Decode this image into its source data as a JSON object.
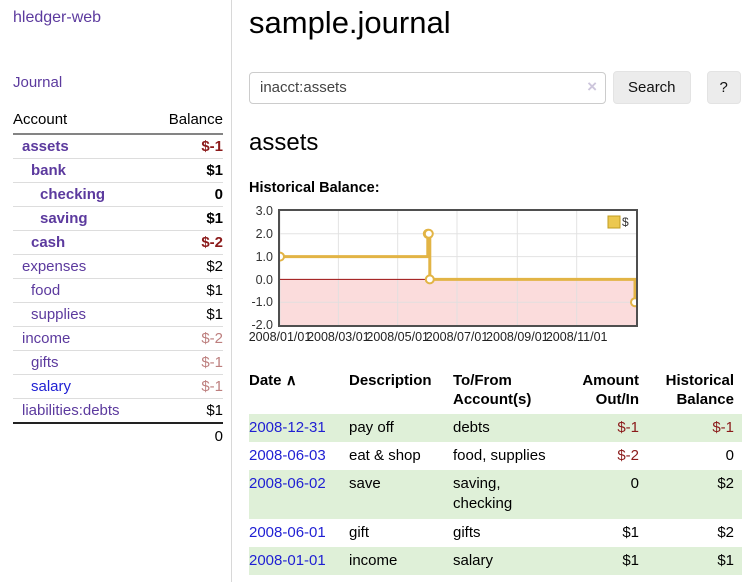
{
  "sidebar": {
    "app_title": "hledger-web",
    "journal_label": "Journal",
    "accounts_table": {
      "headers": {
        "account": "Account",
        "balance": "Balance"
      },
      "rows": [
        {
          "name": "assets",
          "balance": "$-1",
          "depth": 0,
          "bold": true,
          "negative": true
        },
        {
          "name": "bank",
          "balance": "$1",
          "depth": 1,
          "bold": true,
          "negative": false
        },
        {
          "name": "checking",
          "balance": "0",
          "depth": 2,
          "bold": true,
          "negative": false
        },
        {
          "name": "saving",
          "balance": "$1",
          "depth": 2,
          "bold": true,
          "negative": false
        },
        {
          "name": "cash",
          "balance": "$-2",
          "depth": 1,
          "bold": true,
          "negative": true
        },
        {
          "name": "expenses",
          "balance": "$2",
          "depth": 0,
          "bold": false,
          "negative": false
        },
        {
          "name": "food",
          "balance": "$1",
          "depth": 1,
          "bold": false,
          "negative": false
        },
        {
          "name": "supplies",
          "balance": "$1",
          "depth": 1,
          "bold": false,
          "negative": false
        },
        {
          "name": "income",
          "balance": "$-2",
          "depth": 0,
          "bold": false,
          "negative": true
        },
        {
          "name": "gifts",
          "balance": "$-1",
          "depth": 1,
          "bold": false,
          "negative": true
        },
        {
          "name": "salary",
          "balance": "$-1",
          "depth": 1,
          "bold": false,
          "negative": true,
          "blue": true
        },
        {
          "name": "liabilities:debts",
          "balance": "$1",
          "depth": 0,
          "bold": false,
          "negative": false
        }
      ],
      "total": "0"
    }
  },
  "main": {
    "title": "sample.journal",
    "search": {
      "value": "inacct:assets",
      "clear_icon": "×",
      "button_label": "Search",
      "help_label": "?"
    },
    "account_heading": "assets",
    "chart_heading": "Historical Balance:",
    "register_table": {
      "headers": {
        "date": "Date",
        "sort_icon": "∧",
        "description": "Description",
        "accounts": "To/From Account(s)",
        "amount": "Amount Out/In",
        "balance": "Historical Balance"
      },
      "rows": [
        {
          "date": "2008-12-31",
          "description": "pay off",
          "accounts": "debts",
          "amount": "$-1",
          "amount_negative": true,
          "balance": "$-1",
          "balance_negative": true
        },
        {
          "date": "2008-06-03",
          "description": "eat & shop",
          "accounts": "food, supplies",
          "amount": "$-2",
          "amount_negative": true,
          "balance": "0",
          "balance_negative": false
        },
        {
          "date": "2008-06-02",
          "description": "save",
          "accounts": "saving, checking",
          "amount": "0",
          "amount_negative": false,
          "balance": "$2",
          "balance_negative": false
        },
        {
          "date": "2008-06-01",
          "description": "gift",
          "accounts": "gifts",
          "amount": "$1",
          "amount_negative": false,
          "balance": "$2",
          "balance_negative": false
        },
        {
          "date": "2008-01-01",
          "description": "income",
          "accounts": "salary",
          "amount": "$1",
          "amount_negative": false,
          "balance": "$1",
          "balance_negative": false
        }
      ]
    }
  },
  "chart_data": {
    "type": "line",
    "step": true,
    "title": "Historical Balance:",
    "series": [
      {
        "name": "$",
        "points": [
          [
            "2008-01-01",
            1
          ],
          [
            "2008-06-01",
            2
          ],
          [
            "2008-06-02",
            2
          ],
          [
            "2008-06-03",
            0
          ],
          [
            "2008-12-31",
            -1
          ]
        ]
      }
    ],
    "x_range": [
      "2008-01-01",
      "2009-01-01"
    ],
    "ylim": [
      -2,
      3
    ],
    "y_ticks": [
      3.0,
      2.0,
      1.0,
      0.0,
      -1.0,
      -2.0
    ],
    "x_ticks": [
      {
        "label": "2008/01/01",
        "date": "2008-01-01"
      },
      {
        "label": "2008/03/01",
        "date": "2008-03-01"
      },
      {
        "label": "2008/05/01",
        "date": "2008-05-01"
      },
      {
        "label": "2008/07/01",
        "date": "2008-07-01"
      },
      {
        "label": "2008/09/01",
        "date": "2008-09-01"
      },
      {
        "label": "2008/11/01",
        "date": "2008-11-01"
      }
    ],
    "legend": {
      "label": "$",
      "position": "top-right"
    },
    "colors": {
      "line": "#e2b445",
      "marker_fill": "#ffffff",
      "negative_region": "#fbdcdc",
      "zero_line": "#9b0f0f",
      "grid": "#e0e0e0",
      "legend_fill": "#ecc84f",
      "legend_border": "#c09c20",
      "border": "#4f4f4f"
    }
  }
}
